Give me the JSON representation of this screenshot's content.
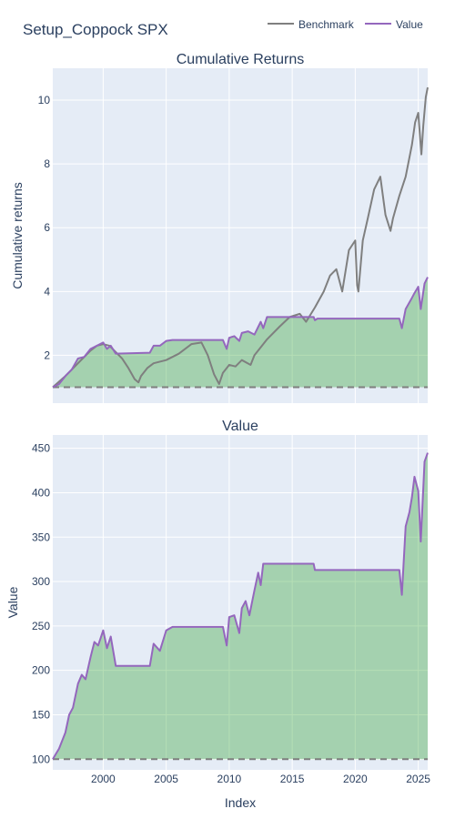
{
  "figure": {
    "title": "Setup_Coppock SPX",
    "legend": [
      {
        "name": "Benchmark",
        "color": "#7f7f7f"
      },
      {
        "name": "Value",
        "color": "#9467bd"
      }
    ],
    "legend_position": "top-right",
    "xlabel": "Index"
  },
  "colors": {
    "plot_bg": "#e5ecf6",
    "grid": "#ffffff",
    "benchmark": "#7f7f7f",
    "value": "#9467bd",
    "fill": "rgba(44,160,44,0.35)",
    "baseline": "#7f7f7f"
  },
  "chart_data": [
    {
      "type": "line",
      "title": "Cumulative Returns",
      "ylabel": "Cumulative returns",
      "xlim": [
        1996.0,
        2025.75
      ],
      "ylim": [
        0.5,
        11.0
      ],
      "xticks": [
        2000,
        2005,
        2010,
        2015,
        2020,
        2025
      ],
      "yticks": [
        2,
        4,
        6,
        8,
        10
      ],
      "baseline": 1,
      "grid": true,
      "series": [
        {
          "name": "Benchmark",
          "x": [
            1996.0,
            1997.0,
            1998.0,
            1999.0,
            1999.5,
            2000.0,
            2000.5,
            2001.0,
            2001.5,
            2002.0,
            2002.5,
            2002.8,
            2003.0,
            2003.5,
            2004.0,
            2005.0,
            2006.0,
            2007.0,
            2007.8,
            2008.3,
            2008.8,
            2009.2,
            2009.5,
            2010.0,
            2010.5,
            2011.0,
            2011.7,
            2012.0,
            2013.0,
            2014.0,
            2014.8,
            2015.6,
            2016.1,
            2016.8,
            2017.5,
            2018.0,
            2018.5,
            2018.97,
            2019.5,
            2020.0,
            2020.15,
            2020.25,
            2020.6,
            2021.0,
            2021.5,
            2021.99,
            2022.4,
            2022.8,
            2023.0,
            2023.5,
            2024.0,
            2024.5,
            2024.75,
            2025.0,
            2025.25,
            2025.4,
            2025.6,
            2025.75
          ],
          "y": [
            1.0,
            1.35,
            1.75,
            2.15,
            2.3,
            2.35,
            2.3,
            2.1,
            1.9,
            1.6,
            1.25,
            1.15,
            1.35,
            1.6,
            1.75,
            1.85,
            2.05,
            2.35,
            2.4,
            2.0,
            1.4,
            1.1,
            1.45,
            1.7,
            1.65,
            1.85,
            1.7,
            2.0,
            2.5,
            2.9,
            3.2,
            3.3,
            3.05,
            3.5,
            4.0,
            4.5,
            4.7,
            4.0,
            5.3,
            5.6,
            4.2,
            4.0,
            5.6,
            6.3,
            7.2,
            7.6,
            6.4,
            5.9,
            6.3,
            7.0,
            7.6,
            8.6,
            9.3,
            9.6,
            8.3,
            9.2,
            10.1,
            10.4
          ]
        },
        {
          "name": "Value",
          "x": [
            1996.0,
            1996.5,
            1997.0,
            1997.5,
            1998.0,
            1998.5,
            1999.0,
            1999.5,
            2000.0,
            2000.3,
            2000.6,
            2001.0,
            2003.7,
            2004.0,
            2004.5,
            2005.0,
            2005.5,
            2006.0,
            2009.5,
            2009.8,
            2010.0,
            2010.4,
            2010.8,
            2011.0,
            2011.5,
            2012.0,
            2012.5,
            2012.7,
            2013.0,
            2016.7,
            2016.8,
            2017.0,
            2023.5,
            2023.7,
            2024.0,
            2024.5,
            2024.7,
            2025.0,
            2025.2,
            2025.5,
            2025.75
          ],
          "y": [
            1.0,
            1.1,
            1.35,
            1.55,
            1.9,
            1.95,
            2.2,
            2.3,
            2.4,
            2.2,
            2.3,
            2.05,
            2.08,
            2.3,
            2.3,
            2.45,
            2.48,
            2.48,
            2.48,
            2.2,
            2.55,
            2.6,
            2.45,
            2.7,
            2.75,
            2.65,
            3.05,
            2.85,
            3.2,
            3.2,
            3.1,
            3.15,
            3.15,
            2.85,
            3.45,
            3.8,
            3.95,
            4.15,
            3.45,
            4.25,
            4.45
          ]
        }
      ]
    },
    {
      "type": "area",
      "title": "Value",
      "ylabel": "Value",
      "xlabel": "Index",
      "xlim": [
        1996.0,
        2025.75
      ],
      "ylim": [
        88,
        465
      ],
      "xticks": [
        2000,
        2005,
        2010,
        2015,
        2020,
        2025
      ],
      "yticks": [
        100,
        150,
        200,
        250,
        300,
        350,
        400,
        450
      ],
      "baseline": 100,
      "grid": true,
      "series": [
        {
          "name": "Value",
          "x": [
            1996.0,
            1996.5,
            1997.0,
            1997.3,
            1997.6,
            1998.0,
            1998.3,
            1998.6,
            1999.0,
            1999.3,
            1999.6,
            2000.0,
            2000.3,
            2000.6,
            2001.0,
            2003.7,
            2004.0,
            2004.5,
            2005.0,
            2005.5,
            2006.0,
            2009.5,
            2009.8,
            2010.0,
            2010.4,
            2010.8,
            2011.0,
            2011.3,
            2011.6,
            2012.0,
            2012.3,
            2012.5,
            2012.7,
            2013.0,
            2016.7,
            2016.8,
            2017.0,
            2023.5,
            2023.7,
            2024.0,
            2024.3,
            2024.5,
            2024.7,
            2025.0,
            2025.2,
            2025.5,
            2025.75
          ],
          "y": [
            100,
            112,
            130,
            150,
            158,
            185,
            195,
            190,
            215,
            232,
            228,
            245,
            225,
            238,
            205,
            205,
            230,
            222,
            245,
            249,
            249,
            249,
            228,
            260,
            262,
            242,
            270,
            278,
            262,
            290,
            310,
            296,
            320,
            320,
            320,
            313,
            313,
            313,
            285,
            362,
            378,
            395,
            418,
            402,
            345,
            435,
            445
          ]
        }
      ]
    }
  ]
}
